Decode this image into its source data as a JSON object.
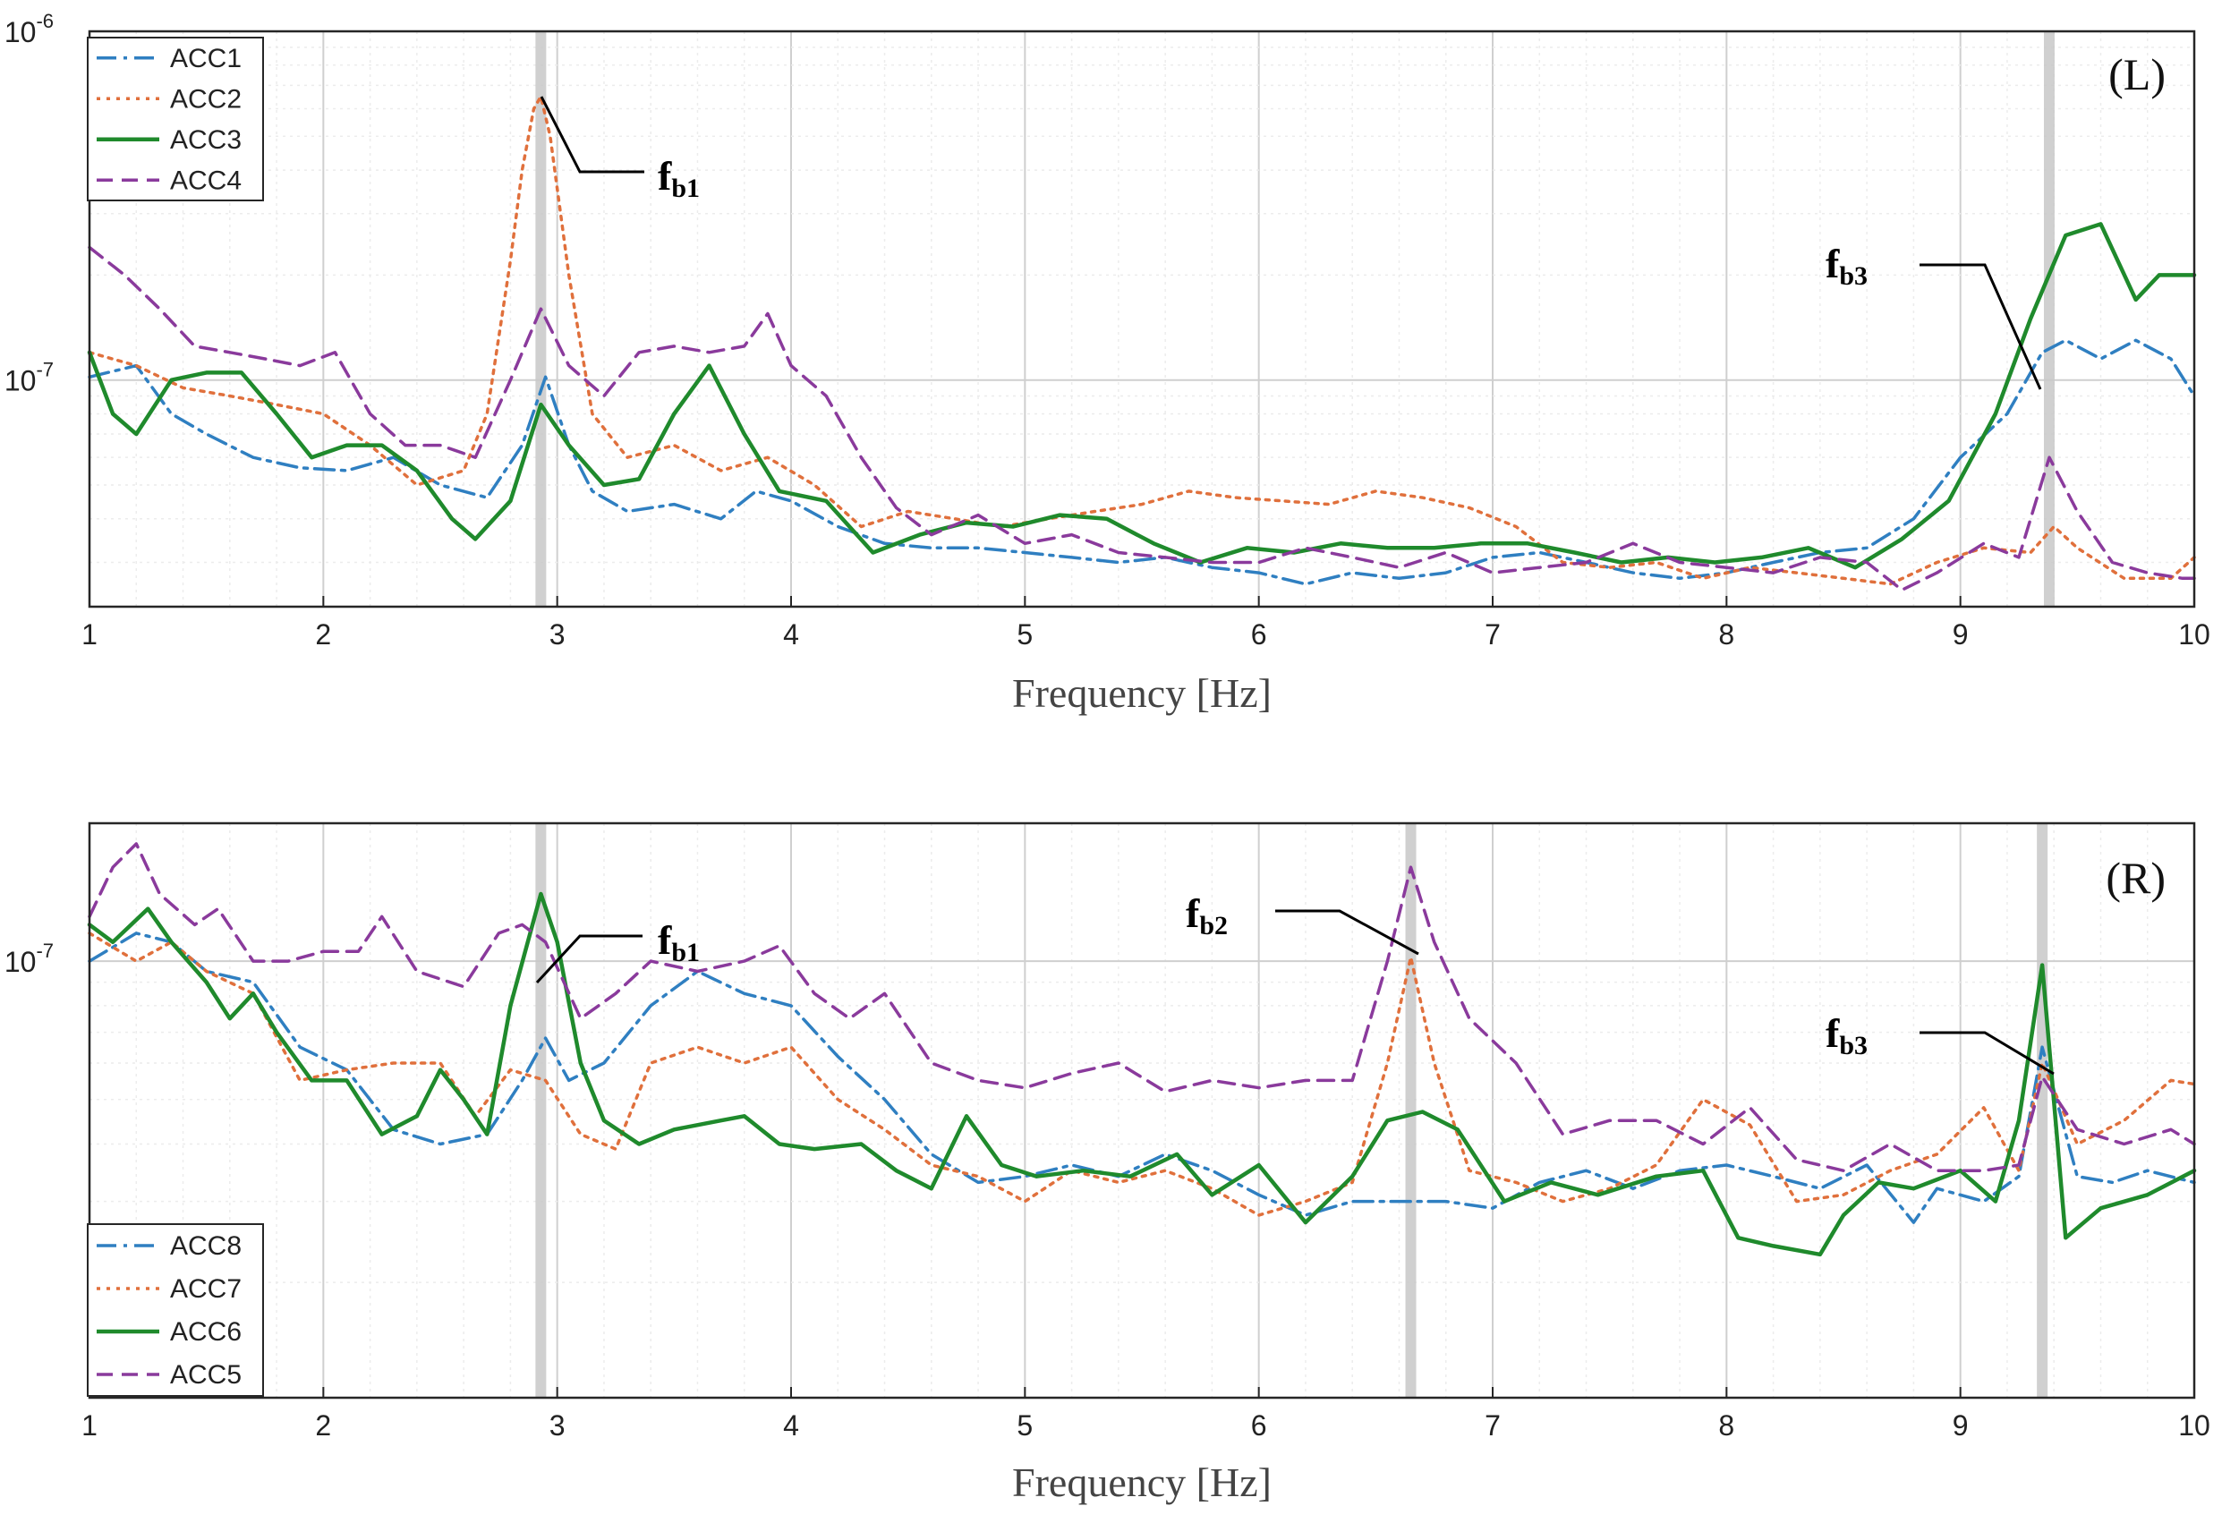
{
  "chart_data": [
    {
      "type": "line",
      "panel_label": "(L)",
      "xlabel": "Frequency [Hz]",
      "xlim": [
        1,
        10
      ],
      "ylim_log10": [
        -7.65,
        -6
      ],
      "x_ticks": [
        "1",
        "2",
        "3",
        "4",
        "5",
        "6",
        "7",
        "8",
        "9",
        "10"
      ],
      "y_ticks": [
        {
          "base": "10",
          "exp": "-6",
          "log": -6
        },
        {
          "base": "10",
          "exp": "-7",
          "log": -7
        }
      ],
      "grid": true,
      "legend_position": "top-left",
      "highlight_frequencies": [
        2.93,
        9.38
      ],
      "annotations": [
        {
          "main": "f",
          "sub": "b1",
          "x": 2.95,
          "y": 6.5e-07
        },
        {
          "main": "f",
          "sub": "b3",
          "x": 9.35,
          "y": 8e-08
        }
      ],
      "series": [
        {
          "name": "ACC1",
          "color": "#2f7fc1",
          "dash": "22 8 4 8",
          "x": [
            1,
            1.2,
            1.35,
            1.5,
            1.7,
            1.9,
            2.1,
            2.3,
            2.5,
            2.7,
            2.85,
            2.95,
            3.05,
            3.15,
            3.3,
            3.5,
            3.7,
            3.85,
            4.0,
            4.2,
            4.4,
            4.6,
            4.8,
            5.0,
            5.2,
            5.4,
            5.6,
            5.8,
            6.0,
            6.2,
            6.4,
            6.6,
            6.8,
            7.0,
            7.2,
            7.4,
            7.6,
            7.8,
            8.0,
            8.2,
            8.4,
            8.6,
            8.8,
            9.0,
            9.2,
            9.35,
            9.45,
            9.6,
            9.75,
            9.9,
            10
          ],
          "y": [
            1.02e-07,
            1.1e-07,
            8e-08,
            7e-08,
            6e-08,
            5.6e-08,
            5.5e-08,
            6e-08,
            5e-08,
            4.6e-08,
            6.5e-08,
            1.02e-07,
            6.5e-08,
            4.8e-08,
            4.2e-08,
            4.4e-08,
            4e-08,
            4.8e-08,
            4.5e-08,
            3.8e-08,
            3.4e-08,
            3.3e-08,
            3.3e-08,
            3.2e-08,
            3.1e-08,
            3e-08,
            3.1e-08,
            2.9e-08,
            2.8e-08,
            2.6e-08,
            2.8e-08,
            2.7e-08,
            2.8e-08,
            3.1e-08,
            3.2e-08,
            3e-08,
            2.8e-08,
            2.7e-08,
            2.8e-08,
            3e-08,
            3.2e-08,
            3.3e-08,
            4e-08,
            6e-08,
            8e-08,
            1.2e-07,
            1.3e-07,
            1.15e-07,
            1.3e-07,
            1.15e-07,
            9e-08
          ]
        },
        {
          "name": "ACC2",
          "color": "#e0703c",
          "dash": "4 7",
          "x": [
            1,
            1.2,
            1.4,
            1.6,
            1.8,
            2.0,
            2.2,
            2.4,
            2.6,
            2.7,
            2.8,
            2.85,
            2.9,
            2.93,
            2.97,
            3.05,
            3.15,
            3.3,
            3.5,
            3.7,
            3.9,
            4.1,
            4.3,
            4.5,
            4.7,
            4.9,
            5.1,
            5.3,
            5.5,
            5.7,
            5.9,
            6.1,
            6.3,
            6.5,
            6.7,
            6.9,
            7.1,
            7.3,
            7.5,
            7.7,
            7.9,
            8.1,
            8.3,
            8.5,
            8.7,
            8.9,
            9.1,
            9.3,
            9.4,
            9.5,
            9.7,
            9.9,
            10
          ],
          "y": [
            1.2e-07,
            1.1e-07,
            9.5e-08,
            9e-08,
            8.5e-08,
            8e-08,
            6.5e-08,
            5e-08,
            5.5e-08,
            8e-08,
            2.2e-07,
            4e-07,
            6e-07,
            6.5e-07,
            5e-07,
            2e-07,
            8e-08,
            6e-08,
            6.5e-08,
            5.5e-08,
            6e-08,
            5e-08,
            3.8e-08,
            4.2e-08,
            4e-08,
            3.8e-08,
            4e-08,
            4.2e-08,
            4.4e-08,
            4.8e-08,
            4.6e-08,
            4.5e-08,
            4.4e-08,
            4.8e-08,
            4.6e-08,
            4.3e-08,
            3.8e-08,
            3e-08,
            2.9e-08,
            3e-08,
            2.7e-08,
            2.9e-08,
            2.8e-08,
            2.7e-08,
            2.6e-08,
            3e-08,
            3.3e-08,
            3.2e-08,
            3.8e-08,
            3.3e-08,
            2.7e-08,
            2.7e-08,
            3.1e-08
          ]
        },
        {
          "name": "ACC3",
          "color": "#1f8a2c",
          "dash": "",
          "x": [
            1,
            1.1,
            1.2,
            1.35,
            1.5,
            1.65,
            1.8,
            1.95,
            2.1,
            2.25,
            2.4,
            2.55,
            2.65,
            2.8,
            2.93,
            3.05,
            3.2,
            3.35,
            3.5,
            3.65,
            3.8,
            3.95,
            4.15,
            4.35,
            4.55,
            4.75,
            4.95,
            5.15,
            5.35,
            5.55,
            5.75,
            5.95,
            6.15,
            6.35,
            6.55,
            6.75,
            6.95,
            7.15,
            7.35,
            7.55,
            7.75,
            7.95,
            8.15,
            8.35,
            8.55,
            8.75,
            8.95,
            9.15,
            9.3,
            9.45,
            9.6,
            9.75,
            9.85,
            10
          ],
          "y": [
            1.2e-07,
            8e-08,
            7e-08,
            1e-07,
            1.05e-07,
            1.05e-07,
            8e-08,
            6e-08,
            6.5e-08,
            6.5e-08,
            5.5e-08,
            4e-08,
            3.5e-08,
            4.5e-08,
            8.5e-08,
            6.5e-08,
            5e-08,
            5.2e-08,
            8e-08,
            1.1e-07,
            7e-08,
            4.8e-08,
            4.5e-08,
            3.2e-08,
            3.6e-08,
            3.9e-08,
            3.8e-08,
            4.1e-08,
            4e-08,
            3.4e-08,
            3e-08,
            3.3e-08,
            3.2e-08,
            3.4e-08,
            3.3e-08,
            3.3e-08,
            3.4e-08,
            3.4e-08,
            3.2e-08,
            3e-08,
            3.1e-08,
            3e-08,
            3.1e-08,
            3.3e-08,
            2.9e-08,
            3.5e-08,
            4.5e-08,
            8e-08,
            1.5e-07,
            2.6e-07,
            2.8e-07,
            1.7e-07,
            2e-07,
            2e-07
          ]
        },
        {
          "name": "ACC4",
          "color": "#8a3a9c",
          "dash": "18 10",
          "x": [
            1,
            1.15,
            1.3,
            1.45,
            1.6,
            1.75,
            1.9,
            2.05,
            2.2,
            2.35,
            2.5,
            2.65,
            2.8,
            2.93,
            3.05,
            3.2,
            3.35,
            3.5,
            3.65,
            3.8,
            3.9,
            4.0,
            4.15,
            4.3,
            4.45,
            4.6,
            4.8,
            5.0,
            5.2,
            5.4,
            5.6,
            5.8,
            6.0,
            6.2,
            6.4,
            6.6,
            6.8,
            7.0,
            7.2,
            7.4,
            7.6,
            7.8,
            8.0,
            8.2,
            8.4,
            8.6,
            8.75,
            8.9,
            9.1,
            9.25,
            9.38,
            9.5,
            9.65,
            9.8,
            9.95,
            10
          ],
          "y": [
            2.4e-07,
            2e-07,
            1.6e-07,
            1.25e-07,
            1.2e-07,
            1.15e-07,
            1.1e-07,
            1.2e-07,
            8e-08,
            6.5e-08,
            6.5e-08,
            6e-08,
            1e-07,
            1.6e-07,
            1.1e-07,
            9e-08,
            1.2e-07,
            1.25e-07,
            1.2e-07,
            1.25e-07,
            1.55e-07,
            1.1e-07,
            9e-08,
            6e-08,
            4.3e-08,
            3.6e-08,
            4.1e-08,
            3.4e-08,
            3.6e-08,
            3.2e-08,
            3.1e-08,
            3e-08,
            3e-08,
            3.3e-08,
            3.1e-08,
            2.9e-08,
            3.2e-08,
            2.8e-08,
            2.9e-08,
            3e-08,
            3.4e-08,
            3e-08,
            2.9e-08,
            2.8e-08,
            3.1e-08,
            3e-08,
            2.5e-08,
            2.8e-08,
            3.4e-08,
            3.1e-08,
            6e-08,
            4.2e-08,
            3e-08,
            2.8e-08,
            2.7e-08,
            2.7e-08
          ]
        }
      ]
    },
    {
      "type": "line",
      "panel_label": "(R)",
      "xlabel": "Frequency [Hz]",
      "xlim": [
        1,
        10
      ],
      "ylim_log10": [
        -7.95,
        -6.7
      ],
      "x_ticks": [
        "1",
        "2",
        "3",
        "4",
        "5",
        "6",
        "7",
        "8",
        "9",
        "10"
      ],
      "y_ticks": [
        {
          "base": "10",
          "exp": "-7",
          "log": -7
        }
      ],
      "grid": true,
      "legend_position": "bottom-left",
      "highlight_frequencies": [
        2.93,
        6.65,
        9.35
      ],
      "annotations": [
        {
          "main": "f",
          "sub": "b1",
          "x": 2.93,
          "y": 1.6e-07
        },
        {
          "main": "f",
          "sub": "b2",
          "x": 6.65,
          "y": 1.9e-07
        },
        {
          "main": "f",
          "sub": "b3",
          "x": 9.35,
          "y": 1.04e-07
        }
      ],
      "series": [
        {
          "name": "ACC8",
          "color": "#2f7fc1",
          "dash": "22 8 4 8",
          "x": [
            1,
            1.2,
            1.35,
            1.5,
            1.7,
            1.9,
            2.1,
            2.3,
            2.5,
            2.7,
            2.85,
            2.95,
            3.05,
            3.2,
            3.4,
            3.6,
            3.8,
            4.0,
            4.2,
            4.4,
            4.6,
            4.8,
            5.0,
            5.2,
            5.4,
            5.6,
            5.8,
            6.0,
            6.2,
            6.4,
            6.6,
            6.8,
            7.0,
            7.2,
            7.4,
            7.6,
            7.8,
            8.0,
            8.2,
            8.4,
            8.6,
            8.8,
            8.9,
            9.1,
            9.25,
            9.35,
            9.5,
            9.65,
            9.8,
            10
          ],
          "y": [
            1e-07,
            1.15e-07,
            1.1e-07,
            9.5e-08,
            9e-08,
            6.5e-08,
            5.8e-08,
            4.3e-08,
            4e-08,
            4.2e-08,
            5.5e-08,
            6.8e-08,
            5.5e-08,
            6e-08,
            8e-08,
            9.5e-08,
            8.5e-08,
            8e-08,
            6.2e-08,
            5e-08,
            3.8e-08,
            3.3e-08,
            3.4e-08,
            3.6e-08,
            3.4e-08,
            3.8e-08,
            3.5e-08,
            3.1e-08,
            2.8e-08,
            3e-08,
            3e-08,
            3e-08,
            2.9e-08,
            3.3e-08,
            3.5e-08,
            3.2e-08,
            3.5e-08,
            3.6e-08,
            3.4e-08,
            3.2e-08,
            3.6e-08,
            2.7e-08,
            3.2e-08,
            3e-08,
            3.4e-08,
            6.5e-08,
            3.4e-08,
            3.3e-08,
            3.5e-08,
            3.3e-08
          ]
        },
        {
          "name": "ACC7",
          "color": "#e0703c",
          "dash": "4 7",
          "x": [
            1,
            1.2,
            1.35,
            1.5,
            1.7,
            1.9,
            2.1,
            2.3,
            2.5,
            2.65,
            2.8,
            2.95,
            3.1,
            3.25,
            3.4,
            3.6,
            3.8,
            4.0,
            4.2,
            4.4,
            4.6,
            4.8,
            5.0,
            5.2,
            5.4,
            5.6,
            5.8,
            6.0,
            6.2,
            6.4,
            6.55,
            6.65,
            6.75,
            6.9,
            7.1,
            7.3,
            7.5,
            7.7,
            7.9,
            8.1,
            8.3,
            8.5,
            8.7,
            8.9,
            9.1,
            9.25,
            9.35,
            9.5,
            9.7,
            9.9,
            10
          ],
          "y": [
            1.15e-07,
            1e-07,
            1.1e-07,
            9.5e-08,
            8.5e-08,
            5.5e-08,
            5.8e-08,
            6e-08,
            6e-08,
            4.6e-08,
            5.8e-08,
            5.5e-08,
            4.2e-08,
            3.9e-08,
            6e-08,
            6.5e-08,
            6e-08,
            6.5e-08,
            5e-08,
            4.3e-08,
            3.6e-08,
            3.4e-08,
            3e-08,
            3.5e-08,
            3.3e-08,
            3.5e-08,
            3.2e-08,
            2.8e-08,
            3e-08,
            3.3e-08,
            6e-08,
            1.02e-07,
            6e-08,
            3.5e-08,
            3.3e-08,
            3e-08,
            3.2e-08,
            3.6e-08,
            5e-08,
            4.4e-08,
            3e-08,
            3.1e-08,
            3.5e-08,
            3.8e-08,
            4.8e-08,
            3.5e-08,
            6e-08,
            4e-08,
            4.5e-08,
            5.5e-08,
            5.4e-08
          ]
        },
        {
          "name": "ACC6",
          "color": "#1f8a2c",
          "dash": "",
          "x": [
            1,
            1.1,
            1.25,
            1.35,
            1.5,
            1.6,
            1.7,
            1.8,
            1.95,
            2.1,
            2.25,
            2.4,
            2.5,
            2.6,
            2.7,
            2.8,
            2.93,
            3.0,
            3.1,
            3.2,
            3.35,
            3.5,
            3.7,
            3.8,
            3.95,
            4.1,
            4.3,
            4.45,
            4.6,
            4.75,
            4.9,
            5.05,
            5.25,
            5.45,
            5.65,
            5.8,
            6.0,
            6.2,
            6.4,
            6.55,
            6.7,
            6.85,
            7.05,
            7.25,
            7.45,
            7.7,
            7.9,
            8.05,
            8.2,
            8.4,
            8.5,
            8.65,
            8.8,
            9.0,
            9.15,
            9.25,
            9.35,
            9.45,
            9.6,
            9.8,
            10
          ],
          "y": [
            1.2e-07,
            1.1e-07,
            1.3e-07,
            1.1e-07,
            9e-08,
            7.5e-08,
            8.5e-08,
            7e-08,
            5.5e-08,
            5.5e-08,
            4.2e-08,
            4.6e-08,
            5.8e-08,
            5e-08,
            4.2e-08,
            8e-08,
            1.4e-07,
            1.1e-07,
            6e-08,
            4.5e-08,
            4e-08,
            4.3e-08,
            4.5e-08,
            4.6e-08,
            4e-08,
            3.9e-08,
            4e-08,
            3.5e-08,
            3.2e-08,
            4.6e-08,
            3.6e-08,
            3.4e-08,
            3.5e-08,
            3.4e-08,
            3.8e-08,
            3.1e-08,
            3.6e-08,
            2.7e-08,
            3.4e-08,
            4.5e-08,
            4.7e-08,
            4.3e-08,
            3e-08,
            3.3e-08,
            3.1e-08,
            3.4e-08,
            3.5e-08,
            2.5e-08,
            2.4e-08,
            2.3e-08,
            2.8e-08,
            3.3e-08,
            3.2e-08,
            3.5e-08,
            3e-08,
            4.5e-08,
            9.8e-08,
            2.5e-08,
            2.9e-08,
            3.1e-08,
            3.5e-08
          ]
        },
        {
          "name": "ACC5",
          "color": "#8a3a9c",
          "dash": "18 10",
          "x": [
            1,
            1.1,
            1.2,
            1.3,
            1.45,
            1.55,
            1.7,
            1.85,
            2.0,
            2.15,
            2.25,
            2.4,
            2.6,
            2.75,
            2.85,
            2.95,
            3.1,
            3.25,
            3.4,
            3.6,
            3.8,
            3.95,
            4.1,
            4.25,
            4.4,
            4.6,
            4.8,
            5.0,
            5.2,
            5.4,
            5.6,
            5.8,
            6.0,
            6.2,
            6.4,
            6.55,
            6.65,
            6.75,
            6.9,
            7.1,
            7.3,
            7.5,
            7.7,
            7.9,
            8.1,
            8.3,
            8.5,
            8.7,
            8.9,
            9.1,
            9.25,
            9.35,
            9.5,
            9.7,
            9.9,
            10
          ],
          "y": [
            1.25e-07,
            1.6e-07,
            1.8e-07,
            1.4e-07,
            1.2e-07,
            1.3e-07,
            1e-07,
            1e-07,
            1.05e-07,
            1.05e-07,
            1.25e-07,
            9.5e-08,
            8.8e-08,
            1.15e-07,
            1.2e-07,
            1.1e-07,
            7.5e-08,
            8.5e-08,
            1e-07,
            9.5e-08,
            1e-07,
            1.08e-07,
            8.5e-08,
            7.5e-08,
            8.5e-08,
            6e-08,
            5.5e-08,
            5.3e-08,
            5.7e-08,
            6e-08,
            5.2e-08,
            5.5e-08,
            5.3e-08,
            5.5e-08,
            5.5e-08,
            1e-07,
            1.6e-07,
            1.1e-07,
            7.5e-08,
            6e-08,
            4.2e-08,
            4.5e-08,
            4.5e-08,
            4e-08,
            4.8e-08,
            3.7e-08,
            3.5e-08,
            4e-08,
            3.5e-08,
            3.5e-08,
            3.6e-08,
            5.6e-08,
            4.3e-08,
            4e-08,
            4.3e-08,
            4e-08
          ]
        }
      ]
    }
  ]
}
